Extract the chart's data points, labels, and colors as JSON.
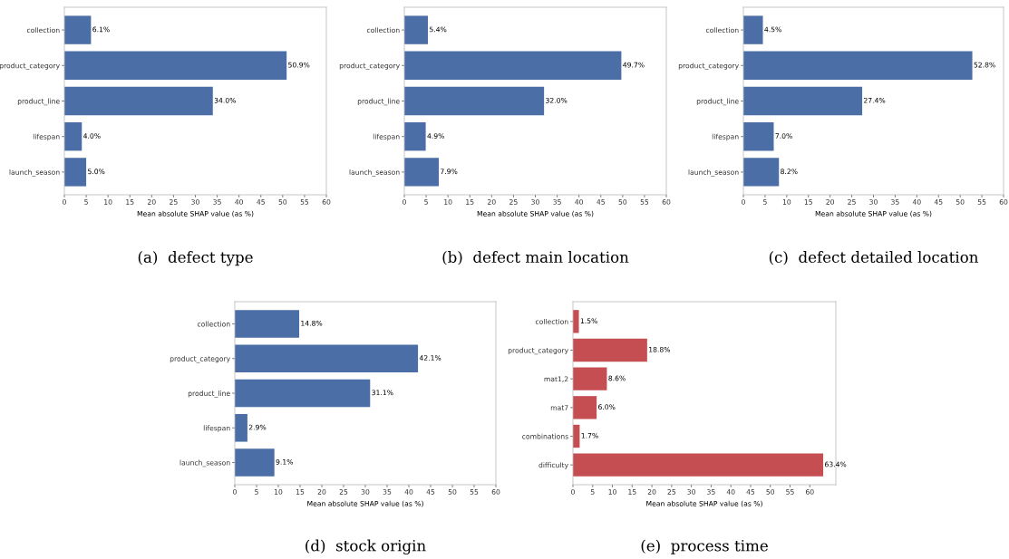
{
  "chart_data": [
    {
      "type": "bar",
      "orientation": "horizontal",
      "title": "(a)  defect type",
      "xlabel": "Mean absolute SHAP value (as %)",
      "categories": [
        "collection",
        "product_category",
        "product_line",
        "lifespan",
        "launch_season"
      ],
      "values": [
        6.1,
        50.9,
        34.0,
        4.0,
        5.0
      ],
      "value_labels": [
        "6.1%",
        "50.9%",
        "34.0%",
        "4.0%",
        "5.0%"
      ],
      "color": "#4a6ea5",
      "xlim": [
        0,
        60
      ],
      "xticks": [
        0,
        5,
        10,
        15,
        20,
        25,
        30,
        35,
        40,
        45,
        50,
        55,
        60
      ],
      "grid": false,
      "legend": false
    },
    {
      "type": "bar",
      "orientation": "horizontal",
      "title": "(b)  defect main location",
      "xlabel": "Mean absolute SHAP value (as %)",
      "categories": [
        "collection",
        "product_category",
        "product_line",
        "lifespan",
        "launch_season"
      ],
      "values": [
        5.4,
        49.7,
        32.0,
        4.9,
        7.9
      ],
      "value_labels": [
        "5.4%",
        "49.7%",
        "32.0%",
        "4.9%",
        "7.9%"
      ],
      "color": "#4a6ea5",
      "xlim": [
        0,
        60
      ],
      "xticks": [
        0,
        5,
        10,
        15,
        20,
        25,
        30,
        35,
        40,
        45,
        50,
        55,
        60
      ],
      "grid": false,
      "legend": false
    },
    {
      "type": "bar",
      "orientation": "horizontal",
      "title": "(c)  defect detailed location",
      "xlabel": "Mean absolute SHAP value (as %)",
      "categories": [
        "collection",
        "product_category",
        "product_line",
        "lifespan",
        "launch_season"
      ],
      "values": [
        4.5,
        52.8,
        27.4,
        7.0,
        8.2
      ],
      "value_labels": [
        "4.5%",
        "52.8%",
        "27.4%",
        "7.0%",
        "8.2%"
      ],
      "color": "#4a6ea5",
      "xlim": [
        0,
        60
      ],
      "xticks": [
        0,
        5,
        10,
        15,
        20,
        25,
        30,
        35,
        40,
        45,
        50,
        55,
        60
      ],
      "grid": false,
      "legend": false
    },
    {
      "type": "bar",
      "orientation": "horizontal",
      "title": "(d)  stock origin",
      "xlabel": "Mean absolute SHAP value (as %)",
      "categories": [
        "collection",
        "product_category",
        "product_line",
        "lifespan",
        "launch_season"
      ],
      "values": [
        14.8,
        42.1,
        31.1,
        2.9,
        9.1
      ],
      "value_labels": [
        "14.8%",
        "42.1%",
        "31.1%",
        "2.9%",
        "9.1%"
      ],
      "color": "#4a6ea5",
      "xlim": [
        0,
        60
      ],
      "xticks": [
        0,
        5,
        10,
        15,
        20,
        25,
        30,
        35,
        40,
        45,
        50,
        55,
        60
      ],
      "grid": false,
      "legend": false
    },
    {
      "type": "bar",
      "orientation": "horizontal",
      "title": "(e)  process time",
      "xlabel": "Mean absolute SHAP value (as %)",
      "categories": [
        "collection",
        "product_category",
        "mat1,2",
        "mat7",
        "combinations",
        "difficulty"
      ],
      "values": [
        1.5,
        18.8,
        8.6,
        6.0,
        1.7,
        63.4
      ],
      "value_labels": [
        "1.5%",
        "18.8%",
        "8.6%",
        "6.0%",
        "1.7%",
        "63.4%"
      ],
      "color": "#c44e52",
      "xlim": [
        0,
        66.6
      ],
      "xticks": [
        0,
        5,
        10,
        15,
        20,
        25,
        30,
        35,
        40,
        45,
        50,
        55,
        60
      ],
      "grid": false,
      "legend": false
    }
  ]
}
